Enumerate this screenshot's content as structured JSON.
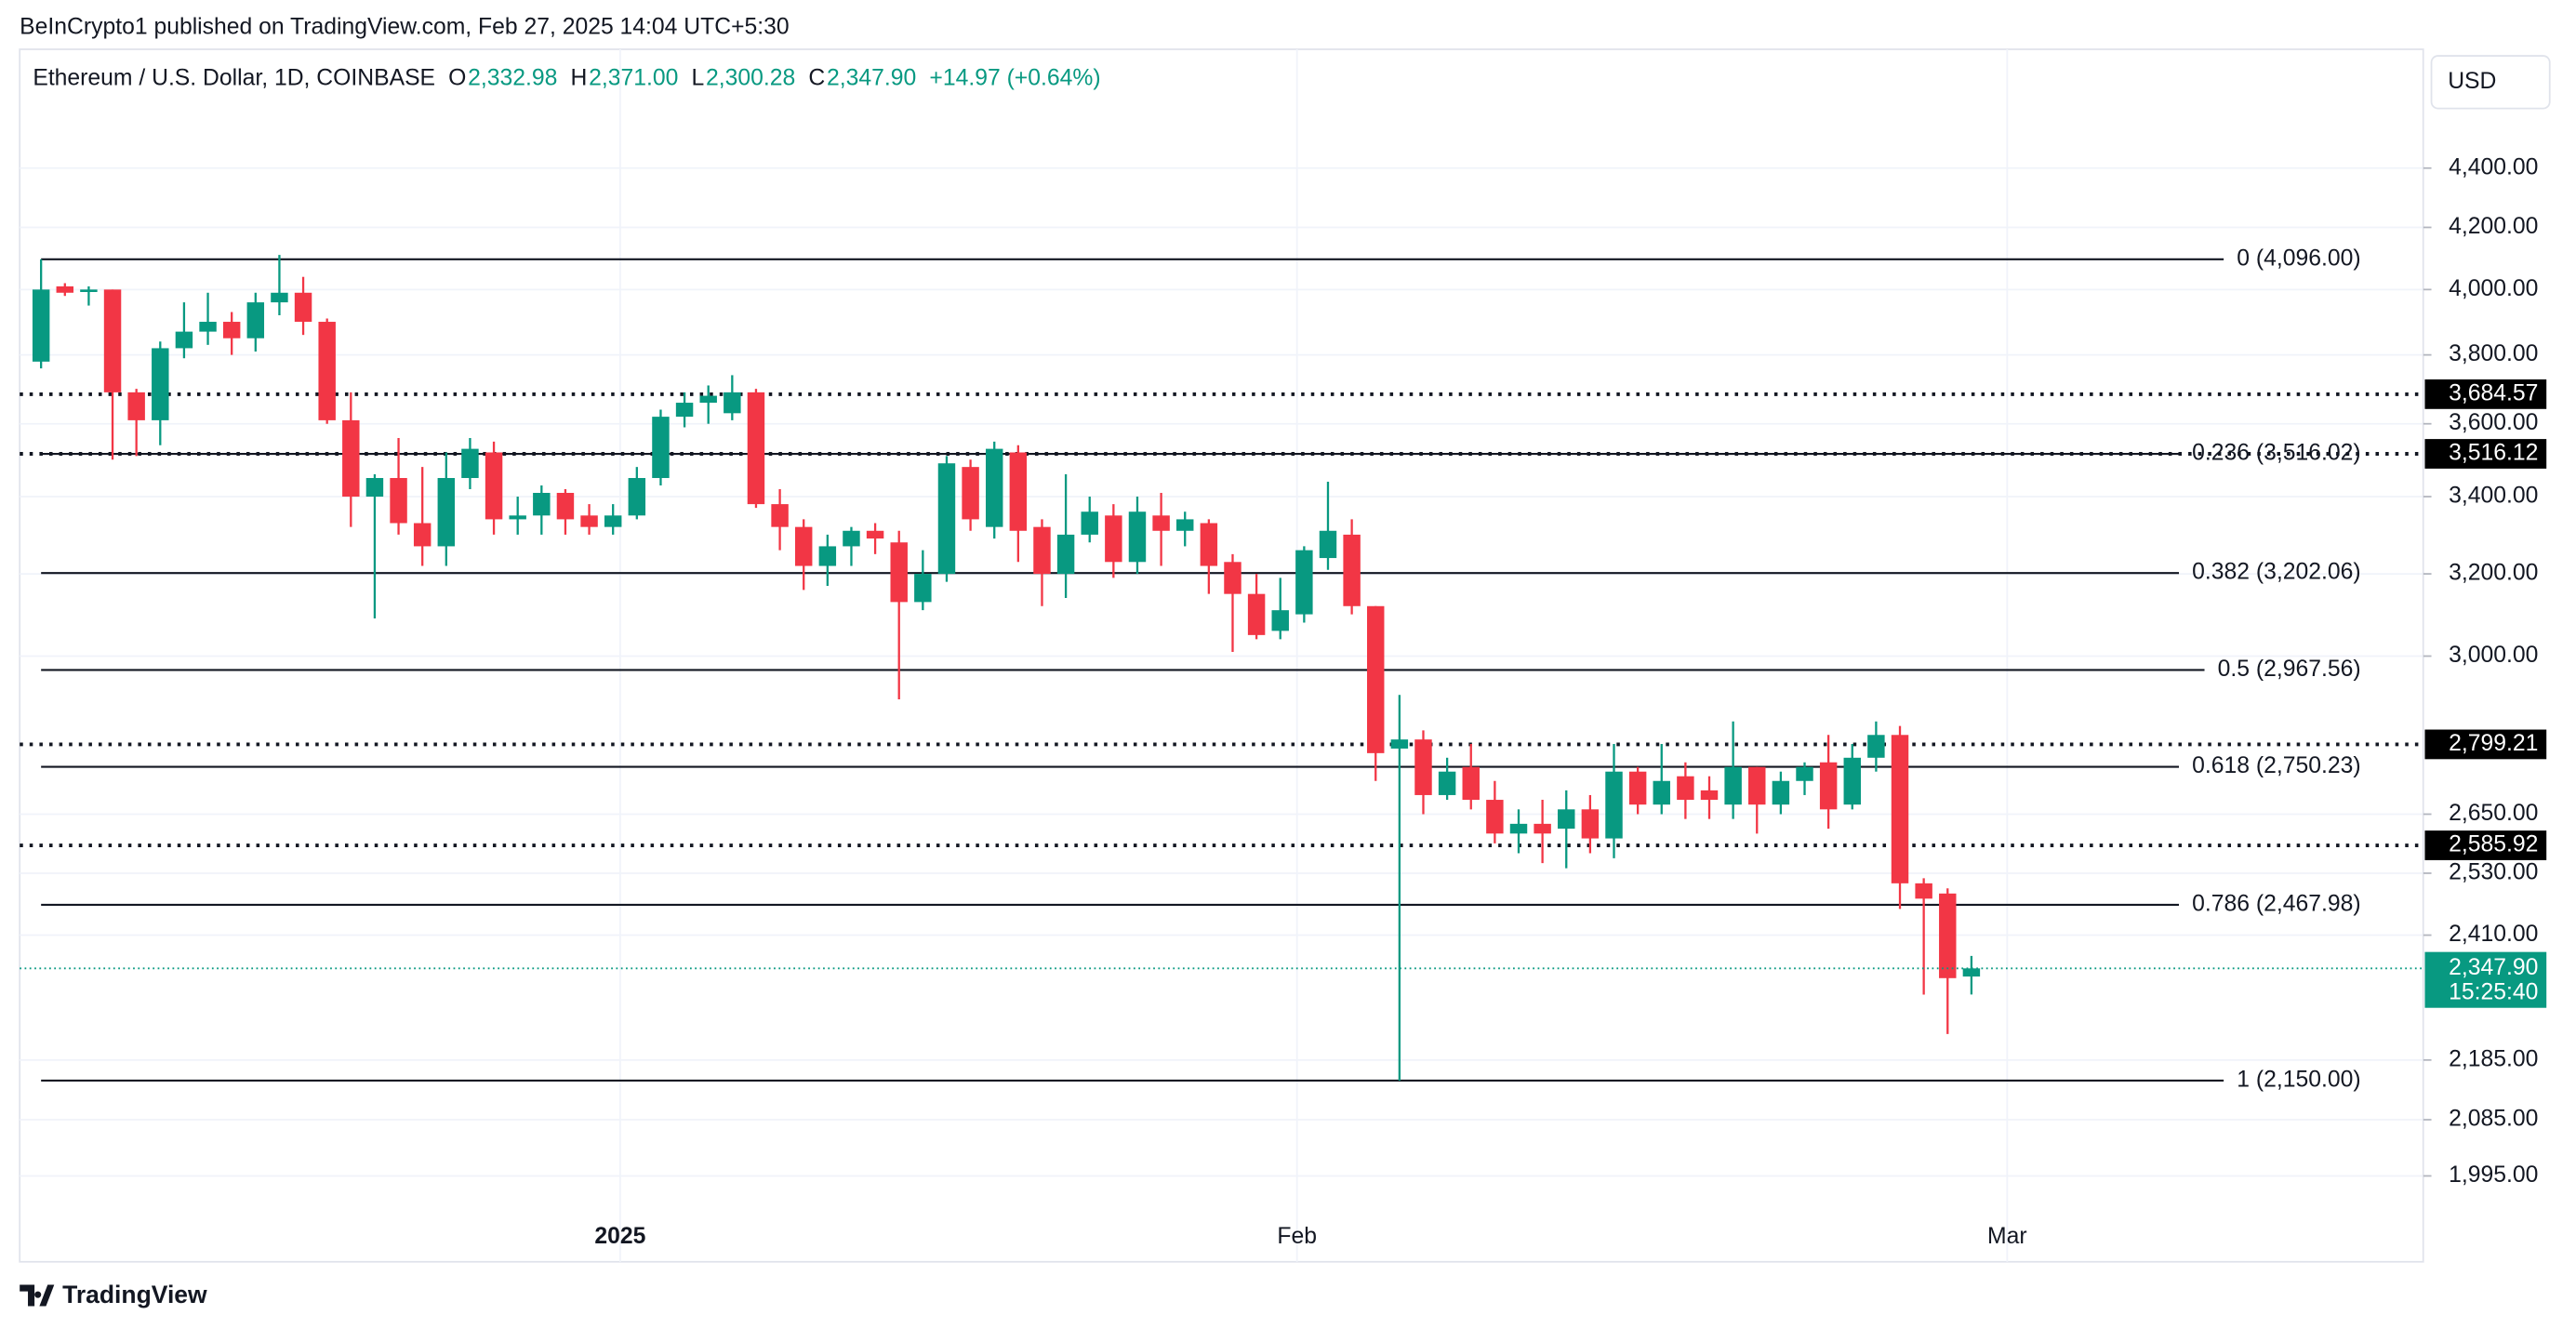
{
  "header": {
    "published": "BeInCrypto1 published on TradingView.com, Feb 27, 2025 14:04 UTC+5:30",
    "symbol": "Ethereum / U.S. Dollar, 1D, COINBASE",
    "ohlc": [
      {
        "key": "O",
        "value": "2,332.98"
      },
      {
        "key": "H",
        "value": "2,371.00"
      },
      {
        "key": "L",
        "value": "2,300.28"
      },
      {
        "key": "C",
        "value": "2,347.90"
      }
    ],
    "change": "+14.97 (+0.64%)",
    "currency": "USD"
  },
  "footer": {
    "brand": "TradingView"
  },
  "chart_data": {
    "type": "candlestick",
    "log_scale": true,
    "grid": true,
    "up_color": "#089981",
    "down_color": "#f23645",
    "categories": [
      null,
      null,
      null,
      null,
      null,
      null,
      null,
      null,
      null,
      null,
      null,
      null,
      null,
      null,
      null,
      null,
      null,
      null,
      null,
      null,
      null,
      null,
      null,
      null,
      null,
      null,
      null,
      null,
      null,
      null,
      null,
      null,
      null,
      null,
      null,
      null,
      null,
      null,
      null,
      null,
      null,
      null,
      null,
      null,
      null,
      null,
      null,
      null,
      null,
      null,
      null,
      null,
      null,
      null,
      null,
      null,
      null,
      null,
      null,
      null,
      null,
      null,
      null,
      null,
      null,
      null,
      null,
      null,
      null,
      null,
      null,
      null,
      null,
      null,
      null,
      null,
      null,
      null,
      null,
      null,
      null,
      null
    ],
    "open": [
      3780,
      4010,
      3995,
      4000,
      3690,
      3610,
      3820,
      3870,
      3900,
      3850,
      3960,
      3990,
      3900,
      3610,
      3400,
      3450,
      3330,
      3270,
      3450,
      3520,
      3340,
      3350,
      3410,
      3350,
      3320,
      3350,
      3450,
      3620,
      3660,
      3630,
      3690,
      3380,
      3320,
      3220,
      3270,
      3310,
      3280,
      3130,
      3200,
      3480,
      3320,
      3520,
      3320,
      3200,
      3300,
      3350,
      3230,
      3350,
      3310,
      3330,
      3230,
      3150,
      3060,
      3100,
      3240,
      3300,
      3120,
      2790,
      2810,
      2690,
      2750,
      2680,
      2610,
      2630,
      2620,
      2660,
      2600,
      2740,
      2670,
      2730,
      2700,
      2670,
      2750,
      2670,
      2720,
      2760,
      2670,
      2770,
      2820,
      2510,
      2490,
      2332.98
    ],
    "high": [
      4096,
      4020,
      4010,
      4000,
      3700,
      3840,
      3960,
      3990,
      3930,
      3990,
      4110,
      4040,
      3910,
      3690,
      3460,
      3560,
      3480,
      3520,
      3560,
      3550,
      3400,
      3430,
      3420,
      3380,
      3380,
      3480,
      3640,
      3690,
      3710,
      3740,
      3700,
      3420,
      3340,
      3300,
      3320,
      3330,
      3310,
      3260,
      3510,
      3500,
      3550,
      3540,
      3340,
      3460,
      3400,
      3380,
      3400,
      3410,
      3360,
      3340,
      3250,
      3200,
      3190,
      3270,
      3440,
      3340,
      3120,
      2910,
      2830,
      2770,
      2800,
      2720,
      2660,
      2680,
      2700,
      2690,
      2800,
      2750,
      2800,
      2760,
      2730,
      2850,
      2750,
      2740,
      2760,
      2820,
      2800,
      2850,
      2840,
      2520,
      2500,
      2371
    ],
    "low": [
      3760,
      3980,
      3950,
      3500,
      3510,
      3540,
      3790,
      3830,
      3800,
      3810,
      3920,
      3860,
      3600,
      3320,
      3090,
      3300,
      3220,
      3220,
      3420,
      3300,
      3300,
      3300,
      3300,
      3300,
      3300,
      3340,
      3430,
      3590,
      3600,
      3610,
      3370,
      3260,
      3160,
      3170,
      3220,
      3250,
      2900,
      3110,
      3180,
      3310,
      3290,
      3230,
      3120,
      3140,
      3280,
      3190,
      3200,
      3220,
      3270,
      3150,
      3010,
      3040,
      3040,
      3080,
      3210,
      3100,
      2720,
      2150,
      2650,
      2680,
      2660,
      2590,
      2570,
      2550,
      2540,
      2570,
      2560,
      2650,
      2650,
      2640,
      2640,
      2640,
      2610,
      2650,
      2690,
      2620,
      2660,
      2740,
      2460,
      2300,
      2230,
      2300.28
    ],
    "close": [
      4000,
      3990,
      4000,
      3690,
      3610,
      3820,
      3870,
      3900,
      3850,
      3960,
      3990,
      3900,
      3610,
      3400,
      3450,
      3330,
      3270,
      3450,
      3530,
      3340,
      3350,
      3410,
      3340,
      3320,
      3350,
      3450,
      3620,
      3660,
      3680,
      3690,
      3380,
      3320,
      3220,
      3270,
      3310,
      3290,
      3130,
      3200,
      3490,
      3340,
      3530,
      3310,
      3200,
      3300,
      3360,
      3230,
      3360,
      3310,
      3340,
      3220,
      3150,
      3050,
      3110,
      3260,
      3310,
      3120,
      2780,
      2810,
      2690,
      2740,
      2680,
      2610,
      2630,
      2610,
      2660,
      2600,
      2740,
      2670,
      2720,
      2680,
      2680,
      2750,
      2670,
      2720,
      2750,
      2660,
      2770,
      2820,
      2510,
      2480,
      2330,
      2347.9
    ],
    "ylim": [
      1865,
      4830
    ],
    "yticks": [
      {
        "value": 1995,
        "label": "1,995.00"
      },
      {
        "value": 2085,
        "label": "2,085.00"
      },
      {
        "value": 2185,
        "label": "2,185.00"
      },
      {
        "value": 2410,
        "label": "2,410.00"
      },
      {
        "value": 2530,
        "label": "2,530.00"
      },
      {
        "value": 2650,
        "label": "2,650.00"
      },
      {
        "value": 3000,
        "label": "3,000.00"
      },
      {
        "value": 3200,
        "label": "3,200.00"
      },
      {
        "value": 3400,
        "label": "3,400.00"
      },
      {
        "value": 3600,
        "label": "3,600.00"
      },
      {
        "value": 3800,
        "label": "3,800.00"
      },
      {
        "value": 4000,
        "label": "4,000.00"
      },
      {
        "value": 4200,
        "label": "4,200.00"
      },
      {
        "value": 4400,
        "label": "4,400.00"
      }
    ],
    "xticks": [
      {
        "value": 24.3,
        "label": "2025"
      },
      {
        "value": 52.7,
        "label": "Feb"
      },
      {
        "value": 82.5,
        "label": "Mar"
      }
    ],
    "fib_levels": [
      {
        "value": 4096,
        "label": "0 (4,096.00)"
      },
      {
        "value": 3516.02,
        "label": "0.236 (3,516.02)"
      },
      {
        "value": 3202.06,
        "label": "0.382 (3,202.06)"
      },
      {
        "value": 2967.56,
        "label": "0.5 (2,967.56)"
      },
      {
        "value": 2750.23,
        "label": "0.618 (2,750.23)"
      },
      {
        "value": 2467.98,
        "label": "0.786 (2,467.98)"
      },
      {
        "value": 2150,
        "label": "1 (2,150.00)"
      }
    ],
    "levels": [
      {
        "value": 3684.57,
        "label": "3,684.57"
      },
      {
        "value": 3516.12,
        "label": "3,516.12"
      },
      {
        "value": 2799.21,
        "label": "2,799.21"
      },
      {
        "value": 2585.92,
        "label": "2,585.92"
      }
    ],
    "last_price": {
      "value": 2347.9,
      "label": "2,347.90",
      "countdown": "15:25:40"
    }
  }
}
